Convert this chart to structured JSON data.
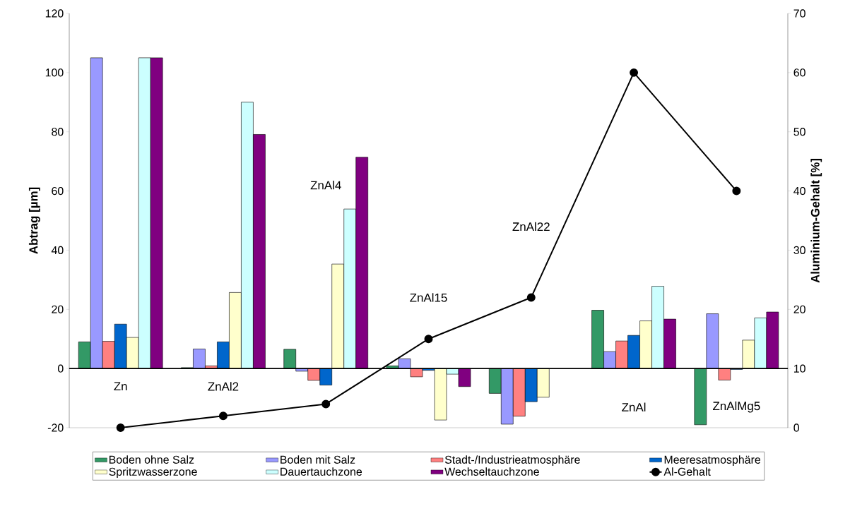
{
  "chart_data": {
    "type": "bar",
    "ylabel": "Abtrag [µm]",
    "y2label": "Aluminium-Gehalt [%]",
    "categories": [
      "Zn",
      "ZnAl2",
      "ZnAl4",
      "ZnAl15",
      "ZnAl22",
      "ZnAl",
      "ZnAlMg5"
    ],
    "ylim": [
      -20,
      120
    ],
    "yticks": [
      -20,
      0,
      20,
      40,
      60,
      80,
      100,
      120
    ],
    "y2lim": [
      0,
      70
    ],
    "y2ticks": [
      0,
      10,
      20,
      30,
      40,
      50,
      60,
      70
    ],
    "grid": false,
    "legend": "bottom",
    "series": [
      {
        "name": "Boden ohne Salz",
        "color": "#339966",
        "values": [
          9,
          0.3,
          6.5,
          0.9,
          -8.4,
          19.7,
          -19
        ]
      },
      {
        "name": "Boden mit Salz",
        "color": "#9999ff",
        "values": [
          105,
          6.6,
          -0.9,
          3.3,
          -18.8,
          5.7,
          18.5
        ]
      },
      {
        "name": "Stadt-/Industrieatmosphäre",
        "color": "#ff8080",
        "values": [
          9.2,
          0.9,
          -4,
          -2.8,
          -16.1,
          9.3,
          -3.9
        ]
      },
      {
        "name": "Meeresatmosphäre",
        "color": "#0066cc",
        "values": [
          15,
          9,
          -5.6,
          -0.6,
          -11.2,
          11.2,
          -0.3
        ]
      },
      {
        "name": "Spritzwasserzone",
        "color": "#ffffcc",
        "values": [
          10.5,
          25.7,
          35.3,
          -17.4,
          -9.7,
          16.1,
          9.6
        ]
      },
      {
        "name": "Dauertauchzone",
        "color": "#ccffff",
        "values": [
          105,
          90,
          53.9,
          -1.9,
          null,
          27.8,
          17.1
        ]
      },
      {
        "name": "Wechseltauchzone",
        "color": "#800080",
        "values": [
          105,
          79.1,
          71.4,
          -6.1,
          null,
          16.7,
          19.1
        ]
      },
      {
        "name": "Al-Gehalt",
        "type": "line",
        "axis": "y2",
        "color": "#000000",
        "marker": "circle",
        "line_style": "solid",
        "values": [
          0,
          2,
          4,
          15,
          22,
          60,
          40
        ]
      }
    ]
  }
}
